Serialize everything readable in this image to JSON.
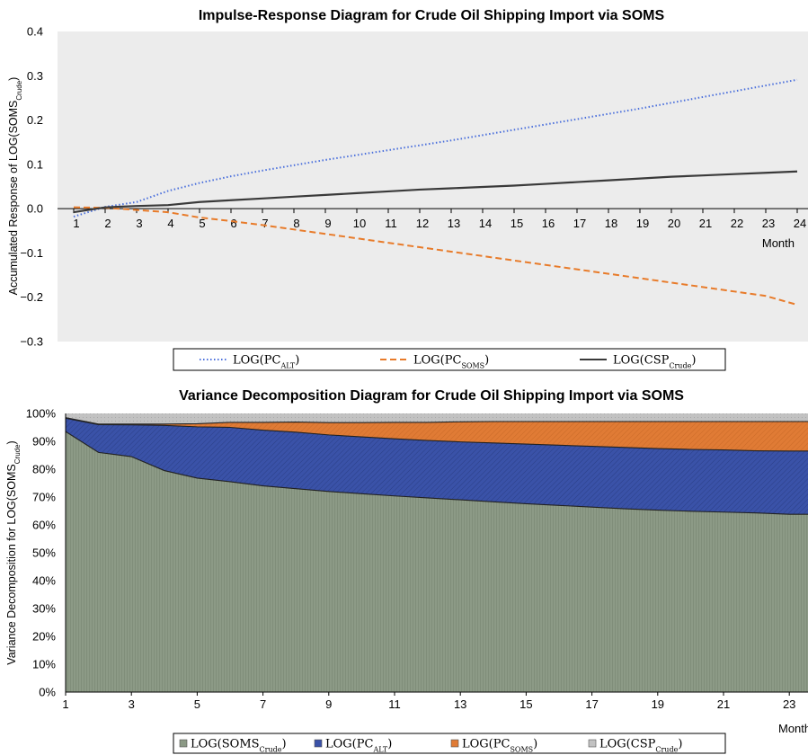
{
  "chart_data": [
    {
      "type": "line",
      "title": "Impulse-Response Diagram for Crude Oil Shipping Import via SOMS",
      "xlabel": "Month",
      "ylabel": {
        "prefix": "Accumulated Response of LOG(",
        "base": "SOMS",
        "sub": "Crude",
        "suffix": ")"
      },
      "x": [
        1,
        2,
        3,
        4,
        5,
        6,
        7,
        8,
        9,
        10,
        11,
        12,
        13,
        14,
        15,
        16,
        17,
        18,
        19,
        20,
        21,
        22,
        23,
        24
      ],
      "ylim": [
        -0.3,
        0.4
      ],
      "yticks": [
        "0.4",
        "0.3",
        "0.2",
        "0.1",
        "0.0",
        "−0.1",
        "−0.2",
        "−0.3"
      ],
      "ytick_values": [
        0.4,
        0.3,
        0.2,
        0.1,
        0.0,
        -0.1,
        -0.2,
        -0.3
      ],
      "series": [
        {
          "name": {
            "prefix": "LOG(",
            "base": "PC",
            "sub": "ALT",
            "suffix": ")"
          },
          "style": "dotted",
          "color": "#4a6fdc",
          "values": [
            -0.018,
            0.004,
            0.015,
            0.04,
            0.058,
            0.073,
            0.086,
            0.098,
            0.11,
            0.121,
            0.132,
            0.143,
            0.154,
            0.166,
            0.178,
            0.19,
            0.202,
            0.214,
            0.226,
            0.239,
            0.252,
            0.265,
            0.278,
            0.291
          ]
        },
        {
          "name": {
            "prefix": "LOG(",
            "base": "PC",
            "sub": "SOMS",
            "suffix": ")"
          },
          "style": "dashed",
          "color": "#e87b2a",
          "values": [
            0.003,
            0.002,
            -0.003,
            -0.008,
            -0.02,
            -0.028,
            -0.037,
            -0.047,
            -0.057,
            -0.067,
            -0.077,
            -0.087,
            -0.097,
            -0.107,
            -0.117,
            -0.127,
            -0.137,
            -0.147,
            -0.157,
            -0.167,
            -0.177,
            -0.187,
            -0.197,
            -0.217
          ]
        },
        {
          "name": {
            "prefix": "LOG(",
            "base": "CSP",
            "sub": "Crude",
            "suffix": ")"
          },
          "style": "solid",
          "color": "#3a3a3a",
          "values": [
            -0.008,
            0.003,
            0.006,
            0.008,
            0.015,
            0.019,
            0.023,
            0.027,
            0.031,
            0.035,
            0.039,
            0.043,
            0.046,
            0.049,
            0.052,
            0.056,
            0.06,
            0.064,
            0.068,
            0.072,
            0.075,
            0.078,
            0.081,
            0.084
          ]
        }
      ],
      "grid": false,
      "legend": "bottom"
    },
    {
      "type": "area",
      "title": "Variance Decomposition Diagram for Crude Oil Shipping Import via SOMS",
      "xlabel": "Month",
      "ylabel": {
        "prefix": "Variance Decomposition for LOG(",
        "base": "SOMS",
        "sub": "Crude",
        "suffix": ")"
      },
      "x": [
        1,
        2,
        3,
        4,
        5,
        6,
        7,
        8,
        9,
        10,
        11,
        12,
        13,
        14,
        15,
        16,
        17,
        18,
        19,
        20,
        21,
        22,
        23,
        24
      ],
      "xticks": [
        "1",
        "3",
        "5",
        "7",
        "9",
        "11",
        "13",
        "15",
        "17",
        "19",
        "21",
        "23"
      ],
      "ylim": [
        0,
        100
      ],
      "yticks": [
        "100%",
        "90%",
        "80%",
        "70%",
        "60%",
        "50%",
        "40%",
        "30%",
        "20%",
        "10%",
        "0%"
      ],
      "stacked": true,
      "series": [
        {
          "name": {
            "prefix": "LOG(",
            "base": "SOMS",
            "sub": "Crude",
            "suffix": ")"
          },
          "color": "#8c9a86",
          "values": [
            93.5,
            86.0,
            84.5,
            79.5,
            76.8,
            75.5,
            74.0,
            73.0,
            72.0,
            71.2,
            70.4,
            69.7,
            69.0,
            68.3,
            67.6,
            67.0,
            66.4,
            65.8,
            65.3,
            64.9,
            64.6,
            64.3,
            63.8,
            63.8
          ]
        },
        {
          "name": {
            "prefix": "LOG(",
            "base": "PC",
            "sub": "ALT",
            "suffix": ")"
          },
          "color": "#3a52a8",
          "values": [
            4.8,
            10.0,
            11.4,
            16.2,
            18.4,
            19.5,
            20.0,
            20.3,
            20.3,
            20.4,
            20.5,
            20.6,
            20.8,
            21.1,
            21.4,
            21.6,
            21.8,
            22.0,
            22.1,
            22.2,
            22.3,
            22.3,
            22.7,
            22.7
          ]
        },
        {
          "name": {
            "prefix": "LOG(",
            "base": "PC",
            "sub": "SOMS",
            "suffix": ")"
          },
          "color": "#e07b35",
          "values": [
            0.2,
            0.2,
            0.3,
            0.5,
            1.1,
            1.8,
            2.8,
            3.6,
            4.4,
            5.1,
            5.9,
            6.5,
            7.2,
            7.7,
            8.1,
            8.5,
            8.9,
            9.3,
            9.7,
            10.0,
            10.2,
            10.5,
            10.6,
            10.6
          ]
        },
        {
          "name": {
            "prefix": "LOG(",
            "base": "CSP",
            "sub": "Crude",
            "suffix": ")"
          },
          "color": "#c2c2c2",
          "values": [
            1.5,
            3.8,
            3.8,
            3.8,
            3.7,
            3.2,
            3.2,
            3.1,
            3.3,
            3.3,
            3.2,
            3.2,
            3.0,
            2.9,
            2.9,
            2.9,
            2.9,
            2.9,
            2.9,
            2.9,
            2.9,
            2.9,
            2.9,
            2.9
          ]
        }
      ],
      "grid": false,
      "legend": "bottom"
    }
  ]
}
